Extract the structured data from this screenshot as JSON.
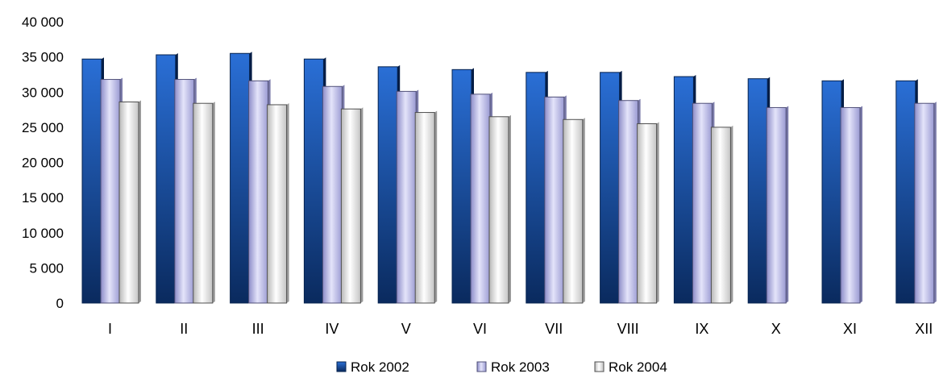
{
  "chart_data": {
    "type": "bar",
    "categories": [
      "I",
      "II",
      "III",
      "IV",
      "V",
      "VI",
      "VII",
      "VIII",
      "IX",
      "X",
      "XI",
      "XII"
    ],
    "y_ticks": [
      "0",
      "5 000",
      "10 000",
      "15 000",
      "20 000",
      "25 000",
      "30 000",
      "35 000",
      "40 000"
    ],
    "ylim": [
      0,
      40000
    ],
    "grid": false,
    "legend_position": "bottom",
    "series": [
      {
        "name": "Rok 2002",
        "color": "#0a3f8f",
        "values": [
          34700,
          35300,
          35500,
          34700,
          33600,
          33200,
          32800,
          32800,
          32200,
          31900,
          31600,
          31600
        ]
      },
      {
        "name": "Rok 2003",
        "color": "#b4b4e6",
        "values": [
          31800,
          31800,
          31600,
          30800,
          30100,
          29700,
          29300,
          28800,
          28400,
          27800,
          27800,
          28400
        ]
      },
      {
        "name": "Rok 2004",
        "color": "#e6e6e6",
        "values": [
          28600,
          28400,
          28200,
          27600,
          27100,
          26500,
          26100,
          25500,
          25000,
          null,
          null,
          null
        ]
      }
    ]
  }
}
